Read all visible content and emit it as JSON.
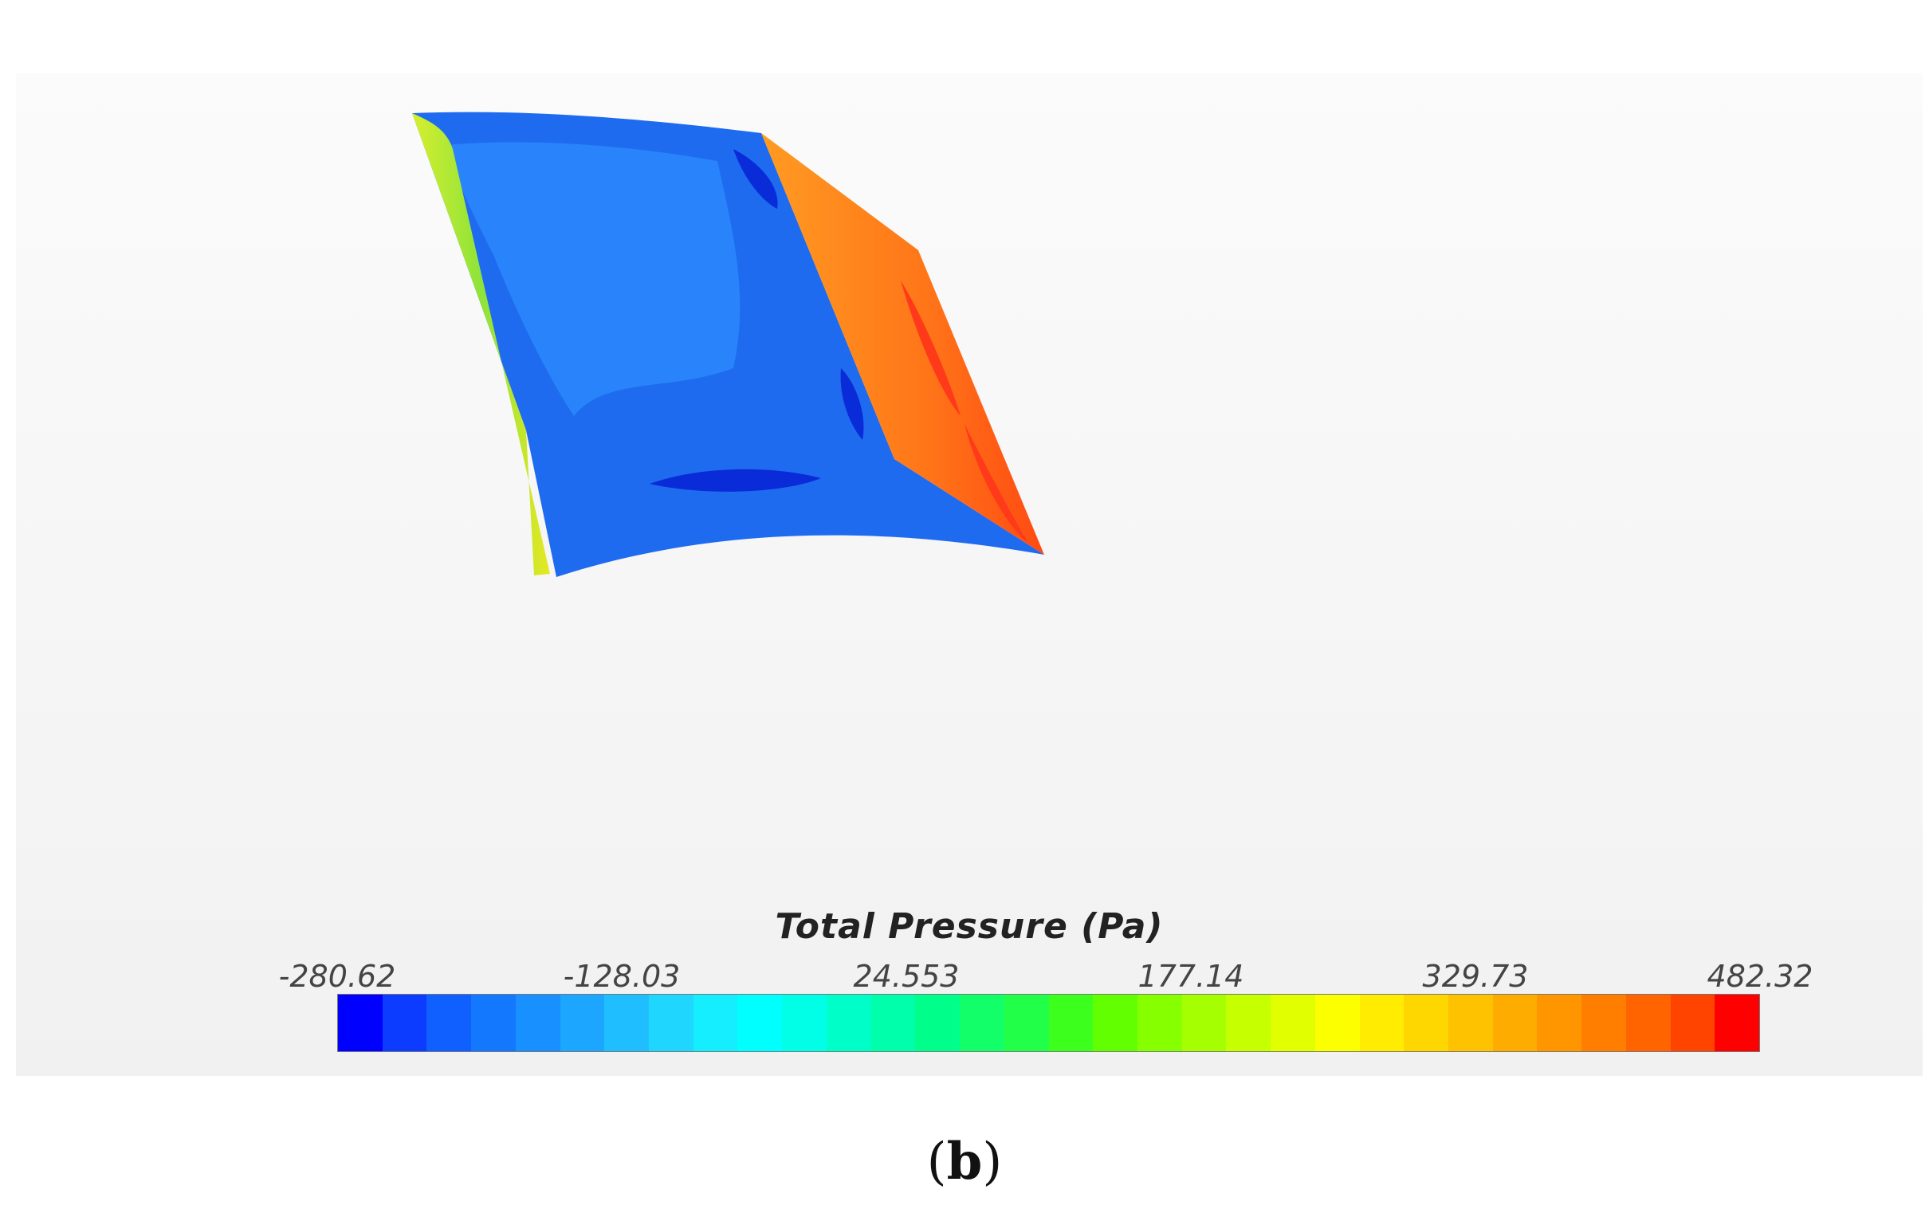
{
  "legend": {
    "title": "Total Pressure (Pa)",
    "ticks": [
      "-280.62",
      "-128.03",
      "24.553",
      "177.14",
      "329.73",
      "482.32"
    ],
    "colors": [
      "#0000ff",
      "#0b3cff",
      "#1060ff",
      "#1478ff",
      "#1890ff",
      "#1ca6ff",
      "#1fbfff",
      "#1fd6ff",
      "#14eeff",
      "#00ffff",
      "#00ffe6",
      "#00ffc8",
      "#00ffaa",
      "#00ff8a",
      "#12ff6a",
      "#22ff48",
      "#3cff1e",
      "#62ff00",
      "#86ff00",
      "#a6ff00",
      "#c6ff00",
      "#e2ff00",
      "#fcff00",
      "#ffec00",
      "#ffd700",
      "#ffc200",
      "#ffac00",
      "#ff9600",
      "#ff7e00",
      "#ff6400",
      "#ff4400",
      "#ff0000"
    ]
  },
  "surface_colors": {
    "suction_face": "#1e6bf0",
    "light_region": "#2d8bff",
    "low_pressure_spots": "#0a2cd8",
    "leading_edge": "#9ee83a",
    "tip_face": "#ff7a1e",
    "tip_top": "#f5b526",
    "hot_spots": "#ff3a1a"
  },
  "caption": {
    "open": "(",
    "letter": "b",
    "close": ")"
  }
}
